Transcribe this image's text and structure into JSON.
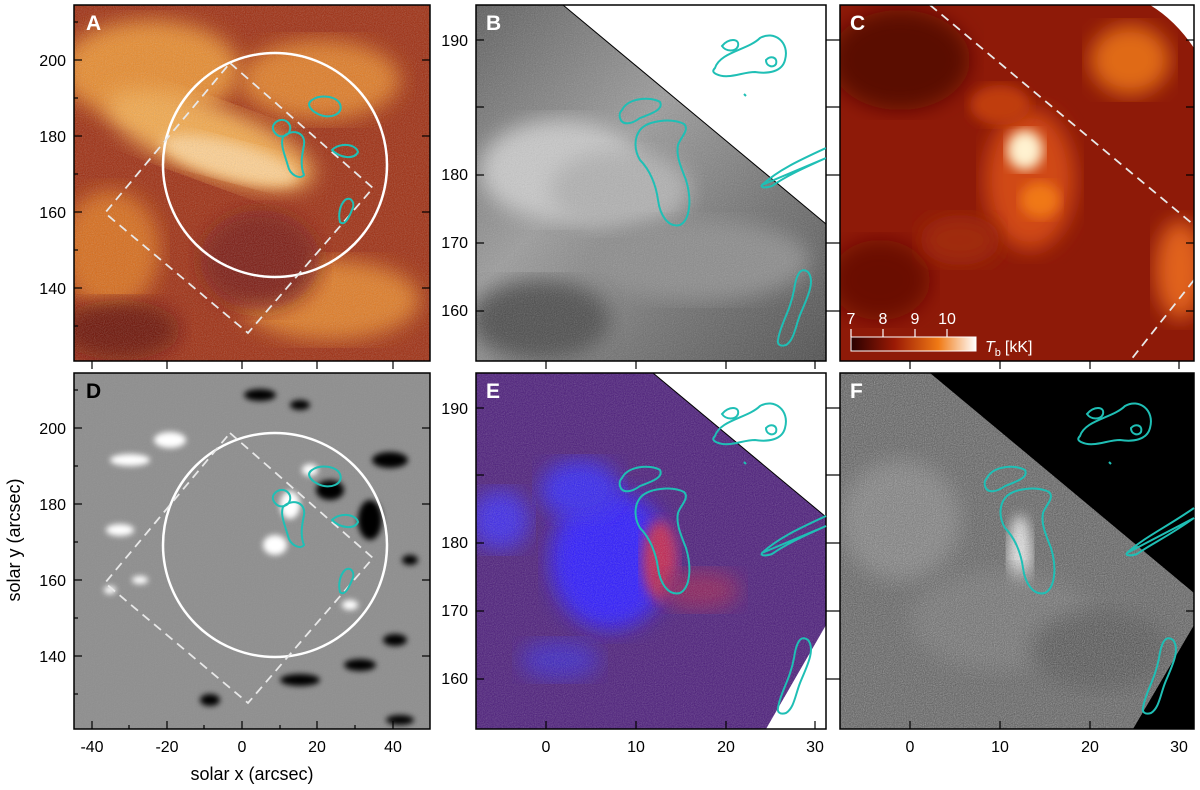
{
  "figure": {
    "axes": {
      "x_title": "solar x (arcsec)",
      "y_title": "solar y (arcsec)",
      "left_x_ticks": [
        "-40",
        "-20",
        "0",
        "20",
        "40"
      ],
      "left_y_ticks": [
        "140",
        "160",
        "180",
        "200"
      ],
      "right_x_ticks": [
        "0",
        "10",
        "20",
        "30"
      ],
      "right_y_ticks": [
        "160",
        "170",
        "180",
        "190"
      ]
    },
    "panels": [
      {
        "letter": "A",
        "colormap": "heat",
        "letter_color": "#ffffff"
      },
      {
        "letter": "B",
        "colormap": "gray",
        "letter_color": "#ffffff"
      },
      {
        "letter": "C",
        "colormap": "heat",
        "letter_color": "#ffffff"
      },
      {
        "letter": "D",
        "colormap": "magnetogram",
        "letter_color": "#000000"
      },
      {
        "letter": "E",
        "colormap": "red-blue",
        "letter_color": "#ffffff"
      },
      {
        "letter": "F",
        "colormap": "gray",
        "letter_color": "#ffffff"
      }
    ],
    "colorbar": {
      "tick_labels": [
        "7",
        "8",
        "9",
        "10"
      ],
      "quantity_symbol": "T",
      "quantity_subscript": "b",
      "unit": "[kK]"
    },
    "colors": {
      "contour": "#1fbfb5",
      "circle": "#ffffff",
      "dashed_box": "#e8e8e8"
    }
  }
}
